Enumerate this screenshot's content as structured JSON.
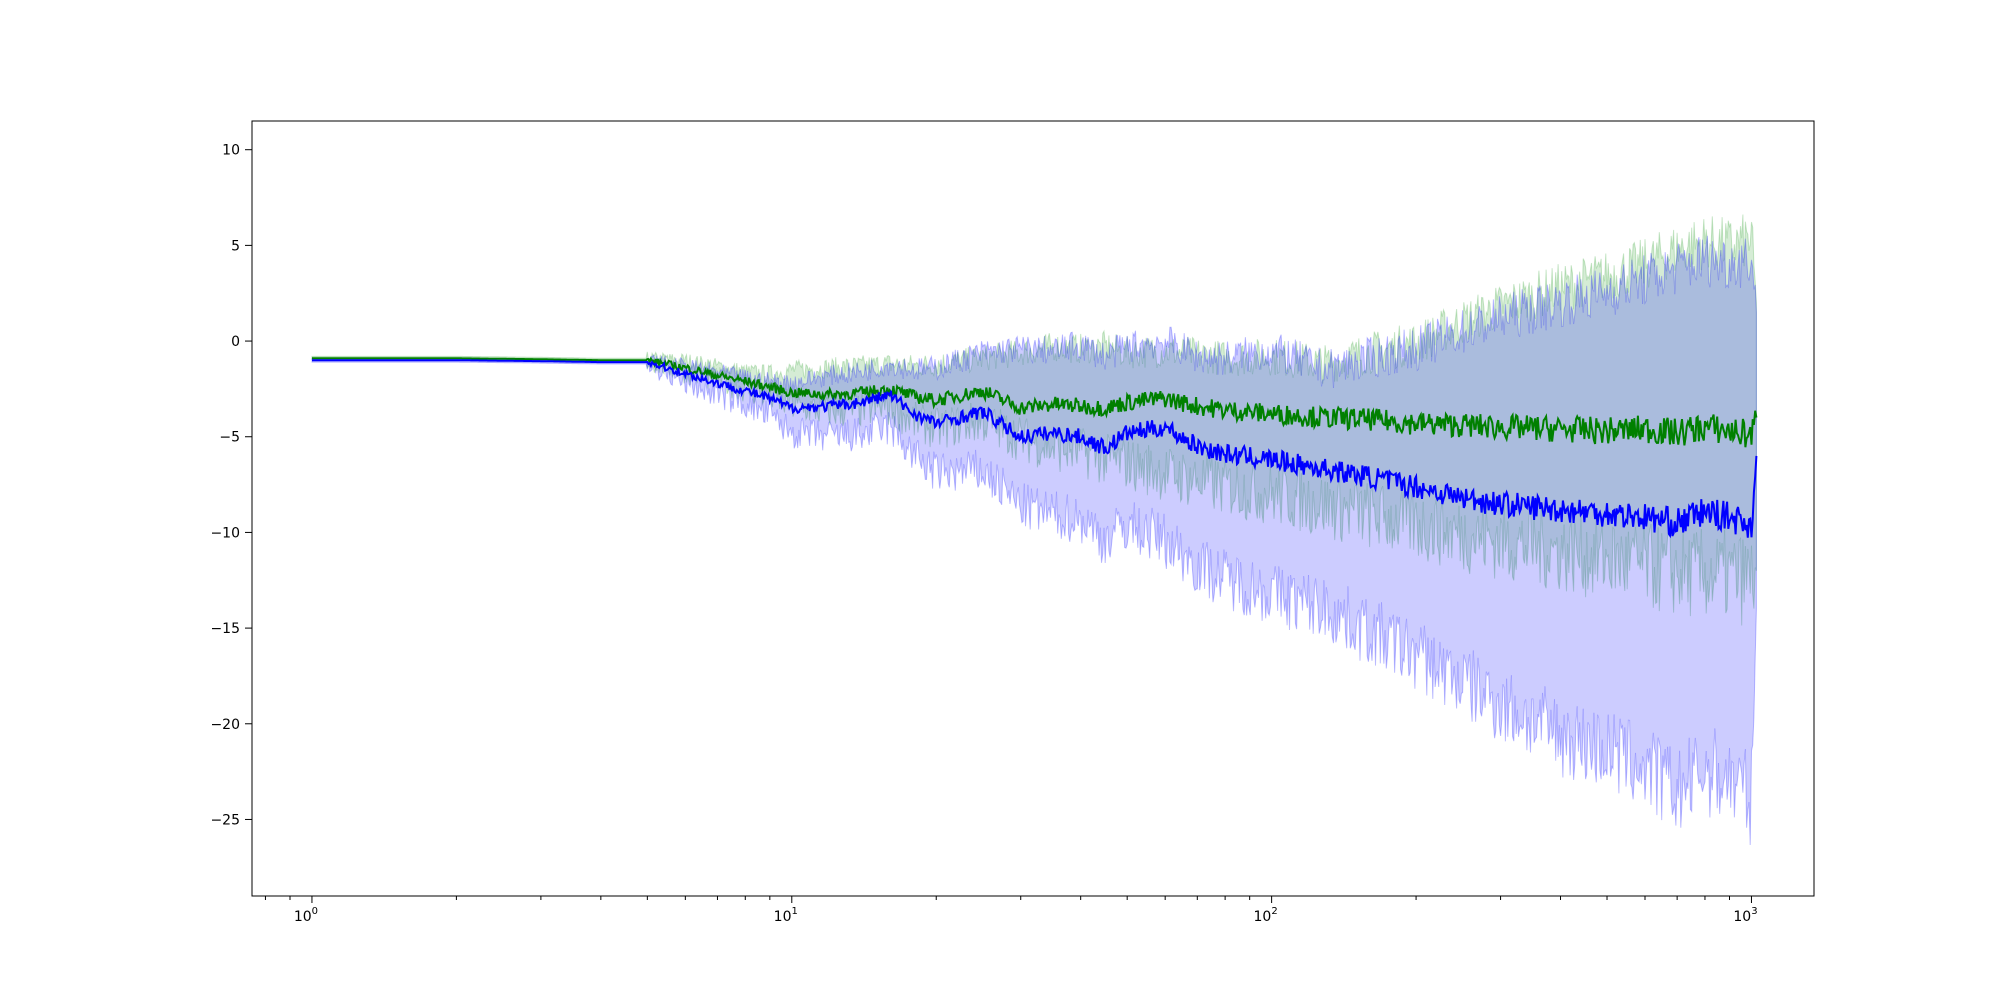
{
  "chart_data": {
    "type": "line",
    "title": "",
    "xlabel": "",
    "ylabel": "",
    "xscale": "log",
    "xlim": [
      0.75,
      1350
    ],
    "ylim": [
      -29,
      11.5
    ],
    "grid": false,
    "legend": "none",
    "x_ticks": [
      {
        "base": "10",
        "exp": "0",
        "value": 1
      },
      {
        "base": "10",
        "exp": "1",
        "value": 10
      },
      {
        "base": "10",
        "exp": "2",
        "value": 100
      },
      {
        "base": "10",
        "exp": "3",
        "value": 1000
      }
    ],
    "y_ticks": [
      {
        "label": "10",
        "value": 10
      },
      {
        "label": "5",
        "value": 5
      },
      {
        "label": "0",
        "value": 0
      },
      {
        "label": "−5",
        "value": -5
      },
      {
        "label": "−10",
        "value": -10
      },
      {
        "label": "−15",
        "value": -15
      },
      {
        "label": "−20",
        "value": -20
      },
      {
        "label": "−25",
        "value": -25
      }
    ],
    "series": [
      {
        "color": "#008000",
        "band_color": "#2ca02c",
        "x": [
          1,
          2,
          3,
          4,
          5,
          6,
          7,
          8,
          9,
          10,
          12,
          14,
          16,
          18,
          20,
          25,
          30,
          35,
          40,
          45,
          50,
          60,
          70,
          80,
          100,
          130,
          160,
          200,
          250,
          300,
          400,
          500,
          600,
          700,
          800,
          900,
          1000,
          1024
        ],
        "mean": [
          -0.9,
          -0.9,
          -0.95,
          -1.0,
          -1.0,
          -1.4,
          -1.8,
          -2.1,
          -2.4,
          -2.7,
          -2.8,
          -2.7,
          -2.5,
          -2.9,
          -3.1,
          -2.6,
          -3.5,
          -3.3,
          -3.4,
          -3.5,
          -3.2,
          -3.0,
          -3.4,
          -3.6,
          -3.8,
          -4.0,
          -4.1,
          -4.3,
          -4.4,
          -4.5,
          -4.6,
          -4.7,
          -4.6,
          -4.8,
          -4.5,
          -4.7,
          -4.9,
          -4.0
        ],
        "upper": [
          -0.8,
          -0.8,
          -0.85,
          -0.9,
          -0.9,
          -1.0,
          -1.3,
          -1.6,
          -1.7,
          -1.5,
          -1.4,
          -1.3,
          -1.2,
          -1.3,
          -1.2,
          -0.9,
          -0.6,
          -0.3,
          -0.4,
          -0.3,
          -0.6,
          -0.5,
          -0.7,
          -0.9,
          -0.8,
          -1.2,
          -0.6,
          -0.1,
          1.0,
          1.8,
          2.8,
          3.4,
          4.0,
          4.8,
          5.2,
          5.0,
          5.3,
          2.0
        ],
        "lower": [
          -0.95,
          -0.95,
          -1.0,
          -1.05,
          -1.05,
          -1.6,
          -2.0,
          -2.5,
          -2.9,
          -3.4,
          -3.7,
          -3.6,
          -3.5,
          -4.2,
          -4.6,
          -4.2,
          -5.1,
          -5.6,
          -5.8,
          -6.2,
          -6.4,
          -6.9,
          -7.3,
          -7.6,
          -8.0,
          -8.6,
          -9.1,
          -9.6,
          -10.1,
          -10.5,
          -11.0,
          -11.4,
          -11.8,
          -12.1,
          -12.2,
          -12.3,
          -12.5,
          -12.0
        ]
      },
      {
        "color": "#0000ff",
        "band_color": "#0000ff",
        "x": [
          1,
          2,
          3,
          4,
          5,
          6,
          7,
          8,
          9,
          10,
          12,
          14,
          16,
          18,
          20,
          25,
          30,
          35,
          40,
          45,
          50,
          60,
          70,
          80,
          100,
          130,
          160,
          200,
          250,
          300,
          400,
          500,
          600,
          700,
          800,
          900,
          1000,
          1024
        ],
        "mean": [
          -1.0,
          -1.0,
          -1.05,
          -1.1,
          -1.1,
          -1.7,
          -2.2,
          -2.6,
          -3.0,
          -3.5,
          -3.4,
          -3.2,
          -2.8,
          -3.8,
          -4.3,
          -3.7,
          -5.0,
          -4.8,
          -5.0,
          -5.6,
          -4.8,
          -4.5,
          -5.5,
          -5.9,
          -6.2,
          -6.7,
          -7.1,
          -7.6,
          -8.2,
          -8.5,
          -8.8,
          -9.0,
          -9.2,
          -9.5,
          -8.9,
          -9.2,
          -9.6,
          -6.0
        ],
        "upper": [
          -0.9,
          -0.9,
          -0.95,
          -1.0,
          -1.0,
          -1.3,
          -1.6,
          -1.9,
          -2.1,
          -2.2,
          -1.8,
          -1.6,
          -1.2,
          -1.5,
          -1.4,
          -0.6,
          -0.4,
          -0.5,
          -0.2,
          -0.8,
          -0.3,
          0.0,
          -0.8,
          -0.9,
          -0.5,
          -1.5,
          -0.9,
          -0.4,
          0.5,
          1.2,
          2.0,
          2.6,
          3.2,
          3.8,
          4.3,
          4.1,
          4.4,
          1.5
        ],
        "lower": [
          -1.1,
          -1.1,
          -1.15,
          -1.2,
          -1.2,
          -2.2,
          -2.8,
          -3.3,
          -3.9,
          -4.8,
          -5.0,
          -4.9,
          -4.5,
          -6.0,
          -6.9,
          -6.8,
          -8.6,
          -9.1,
          -9.3,
          -10.4,
          -9.6,
          -10.4,
          -11.7,
          -12.4,
          -13.2,
          -14.0,
          -15.2,
          -16.4,
          -17.8,
          -19.0,
          -20.6,
          -21.4,
          -22.3,
          -23.6,
          -22.4,
          -22.9,
          -23.9,
          -14.0
        ]
      }
    ]
  }
}
